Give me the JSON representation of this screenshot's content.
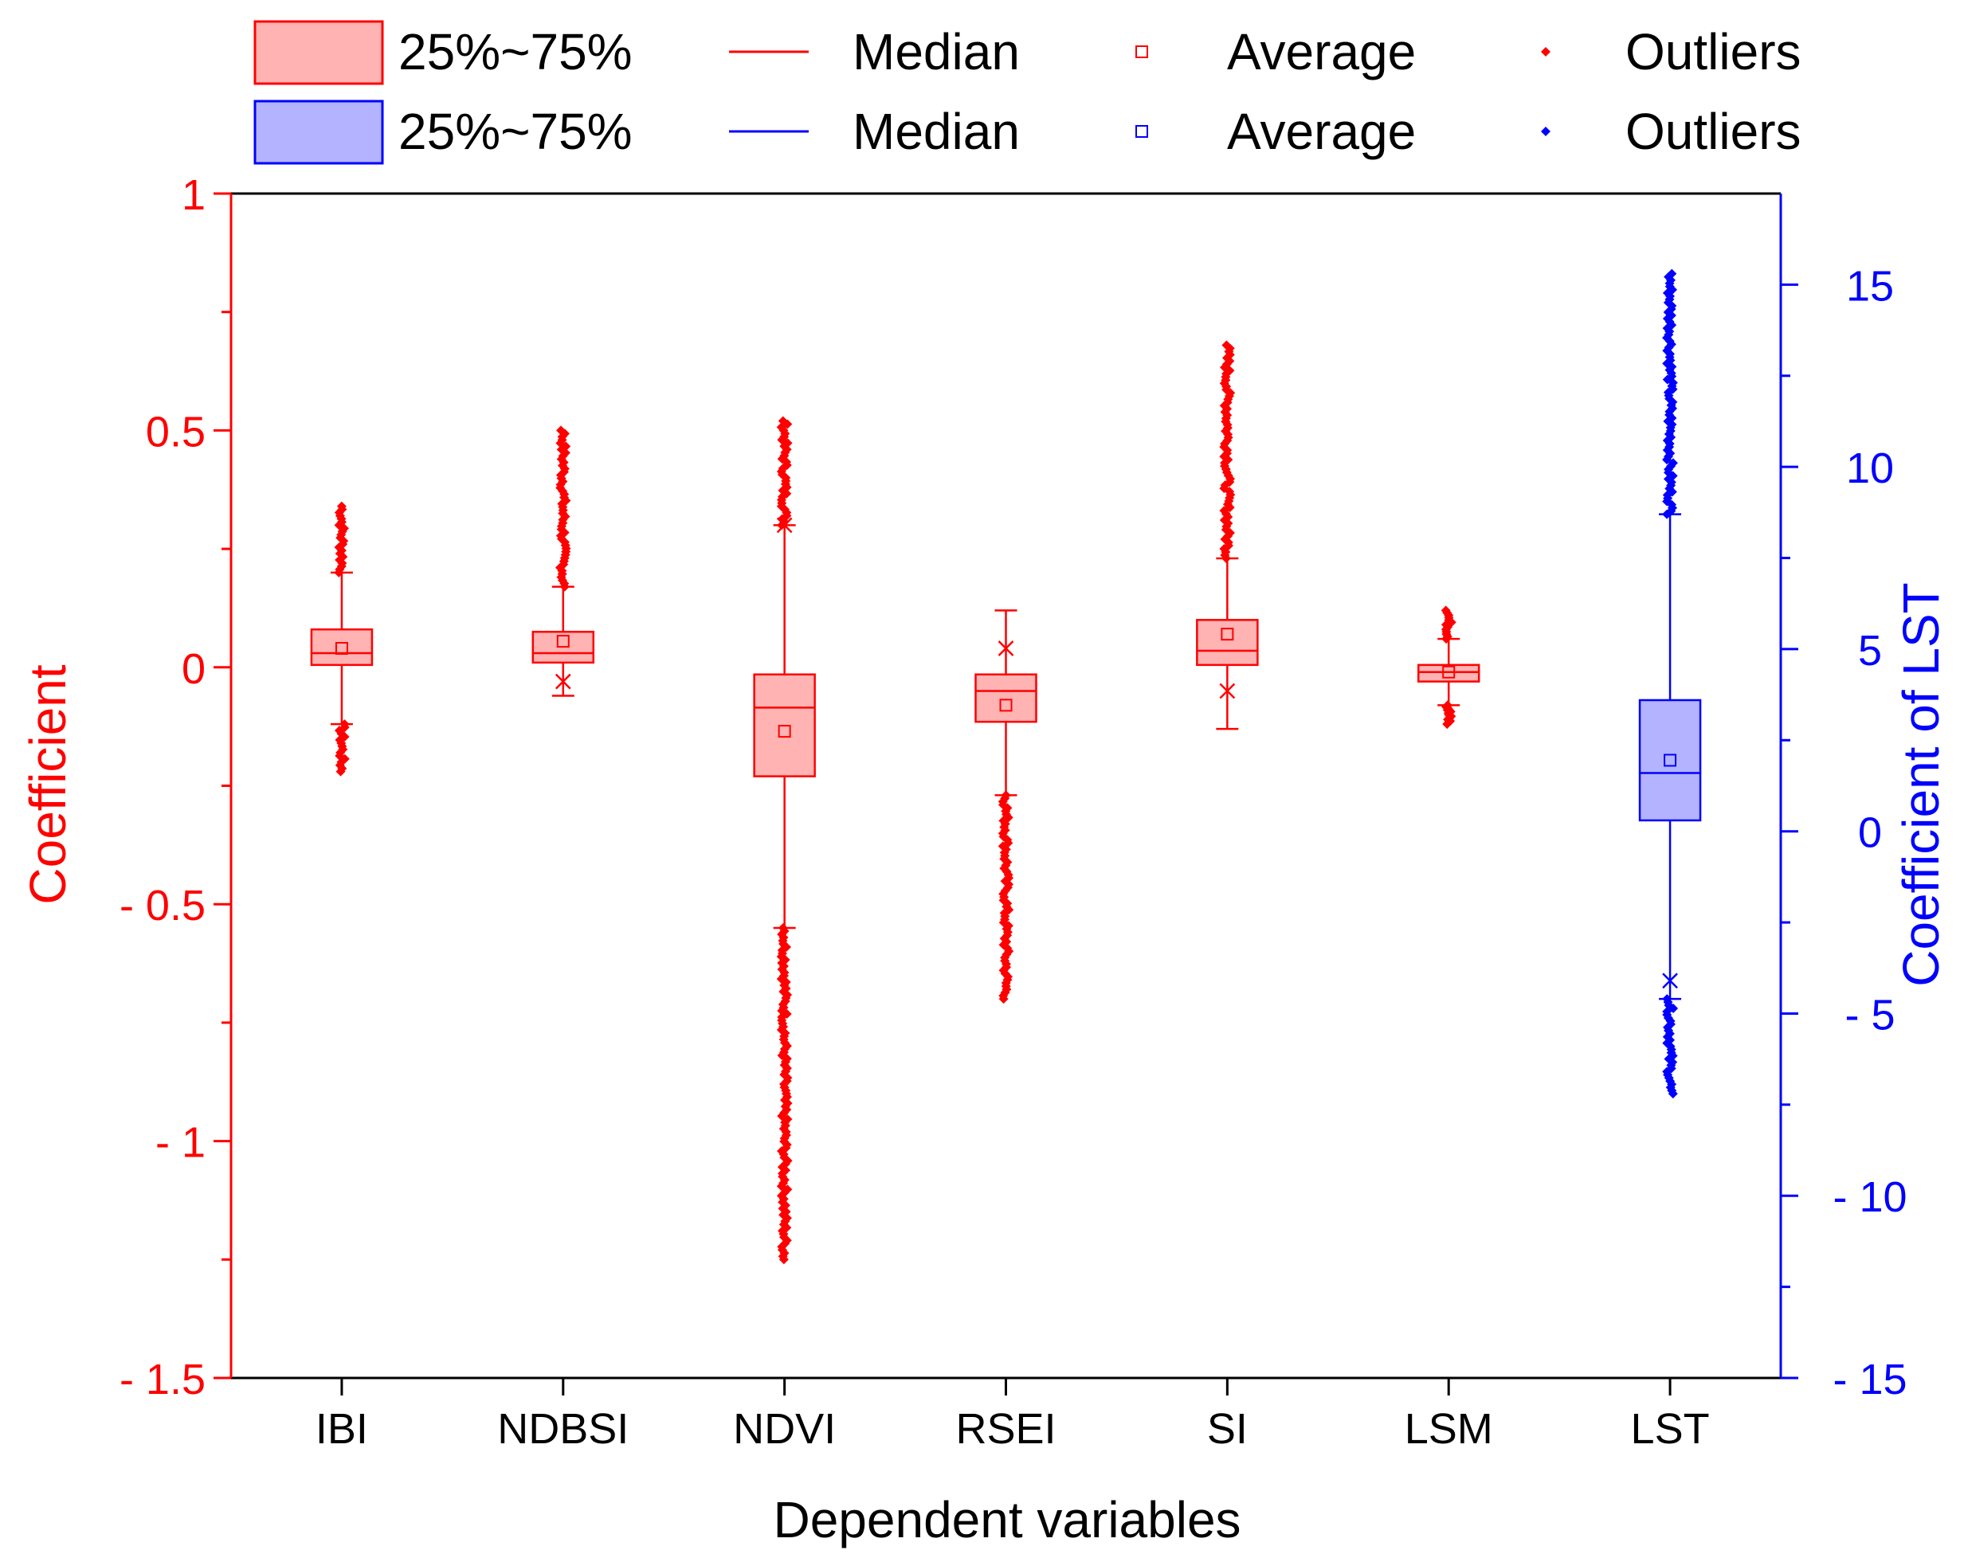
{
  "chart_data": {
    "type": "box",
    "title": "",
    "xlabel": "Dependent variables",
    "ylabel_left": "Coefficient",
    "ylabel_right": "Coefficient of LST",
    "ylim_left": [
      -1.5,
      1
    ],
    "ylim_right": [
      -15,
      17.5
    ],
    "yticks_left": [
      {
        "value": 1,
        "label": "1"
      },
      {
        "value": 0.5,
        "label": "0.5"
      },
      {
        "value": 0,
        "label": "0"
      },
      {
        "value": -0.5,
        "label": "- 0.5"
      },
      {
        "value": -1,
        "label": "- 1"
      },
      {
        "value": -1.5,
        "label": "- 1.5"
      }
    ],
    "yticks_right": [
      {
        "value": 15,
        "label": "15"
      },
      {
        "value": 10,
        "label": "10"
      },
      {
        "value": 5,
        "label": "5"
      },
      {
        "value": 0,
        "label": "0"
      },
      {
        "value": -5,
        "label": "- 5"
      },
      {
        "value": -10,
        "label": "- 10"
      },
      {
        "value": -15,
        "label": "- 15"
      }
    ],
    "colors": {
      "left_axis": "#ff0000",
      "right_axis": "#0000ff",
      "left_box_fill": "#ffb3b3",
      "right_box_fill": "#b3b3ff",
      "frame": "#000000"
    },
    "legend": {
      "position": "top",
      "rows": [
        {
          "series": "left",
          "box_label": "25%~75%",
          "median_label": "Median",
          "average_label": "Average",
          "outlier_label": "Outliers"
        },
        {
          "series": "right",
          "box_label": "25%~75%",
          "median_label": "Median",
          "average_label": "Average",
          "outlier_label": "Outliers"
        }
      ]
    },
    "boxes": [
      {
        "name": "IBI",
        "axis": "left",
        "q1": 0.005,
        "median": 0.03,
        "q3": 0.08,
        "mean": 0.04,
        "whisker_low": -0.12,
        "whisker_high": 0.2,
        "x_min": null,
        "x_max": null,
        "outliers_low": [
          -0.22,
          -0.12
        ],
        "outliers_high": [
          0.2,
          0.34
        ]
      },
      {
        "name": "NDBSI",
        "axis": "left",
        "q1": 0.01,
        "median": 0.03,
        "q3": 0.075,
        "mean": 0.055,
        "whisker_low": -0.06,
        "whisker_high": 0.17,
        "x_min": -0.03,
        "x_max": null,
        "outliers_low": null,
        "outliers_high": [
          0.17,
          0.5
        ]
      },
      {
        "name": "NDVI",
        "axis": "left",
        "q1": -0.23,
        "median": -0.085,
        "q3": -0.015,
        "mean": -0.135,
        "whisker_low": -0.55,
        "whisker_high": 0.3,
        "x_min": null,
        "x_max": 0.3,
        "outliers_low": [
          -1.25,
          -0.55
        ],
        "outliers_high": [
          0.3,
          0.52
        ]
      },
      {
        "name": "RSEI",
        "axis": "left",
        "q1": -0.115,
        "median": -0.05,
        "q3": -0.015,
        "mean": -0.08,
        "whisker_low": -0.27,
        "whisker_high": 0.12,
        "x_min": null,
        "x_max": 0.04,
        "outliers_low": [
          -0.7,
          -0.27
        ],
        "outliers_high": null
      },
      {
        "name": "SI",
        "axis": "left",
        "q1": 0.005,
        "median": 0.035,
        "q3": 0.1,
        "mean": 0.07,
        "whisker_low": -0.13,
        "whisker_high": 0.23,
        "x_min": -0.05,
        "x_max": null,
        "outliers_low": null,
        "outliers_high": [
          0.23,
          0.68
        ]
      },
      {
        "name": "LSM",
        "axis": "left",
        "q1": -0.03,
        "median": -0.01,
        "q3": 0.005,
        "mean": -0.01,
        "whisker_low": -0.08,
        "whisker_high": 0.06,
        "x_min": null,
        "x_max": null,
        "outliers_low": [
          -0.12,
          -0.08
        ],
        "outliers_high": [
          0.06,
          0.12
        ]
      },
      {
        "name": "LST",
        "axis": "right",
        "q1": 0.3,
        "median": 1.6,
        "q3": 3.6,
        "mean": 1.95,
        "whisker_low": -4.6,
        "whisker_high": 8.7,
        "x_min": -4.1,
        "x_max": null,
        "outliers_low": [
          -7.2,
          -4.6
        ],
        "outliers_high": [
          8.7,
          15.3
        ]
      }
    ]
  }
}
